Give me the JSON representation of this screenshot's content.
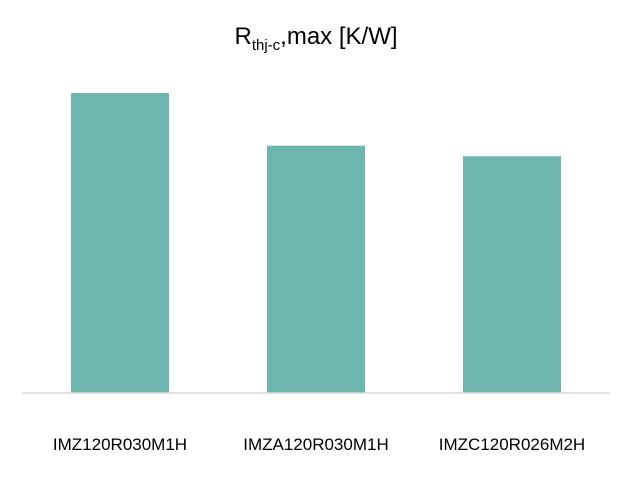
{
  "chart_data": {
    "type": "bar",
    "title": {
      "text": "R",
      "subscript": "thj-c",
      "suffix": ",max [K/W]"
    },
    "categories": [
      "IMZ120R030M1H",
      "IMZA120R030M1H",
      "IMZC120R026M2H"
    ],
    "values": [
      0.57,
      0.47,
      0.45
    ],
    "color": "#6db5ad",
    "ylim": [
      0,
      0.65
    ]
  }
}
